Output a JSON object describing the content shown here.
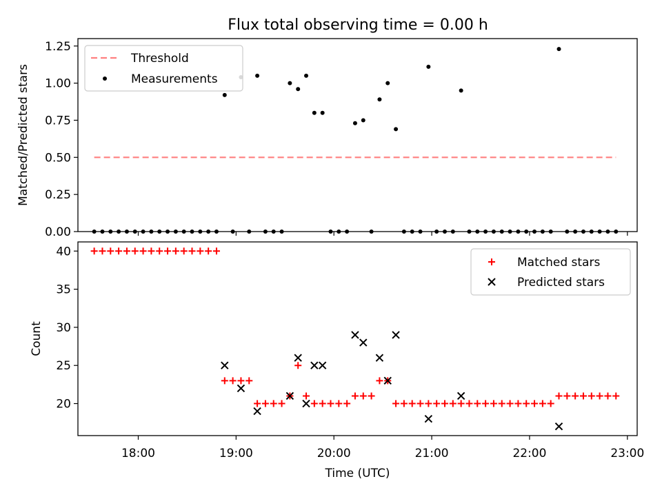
{
  "figure": {
    "title": "Flux total observing time = 0.00 h"
  },
  "chart_data": [
    {
      "type": "scatter",
      "name": "ratio-panel",
      "title": "Flux total observing time = 0.00 h",
      "xlabel": "",
      "ylabel": "Matched/Predicted stars",
      "xlim": [
        "17:23",
        "23:06"
      ],
      "ylim": [
        0,
        1.3
      ],
      "yticks": [
        "0.00",
        "0.25",
        "0.50",
        "0.75",
        "1.00",
        "1.25"
      ],
      "grid": false,
      "legend_position": "upper-left",
      "threshold": {
        "name": "Threshold",
        "value": 0.5,
        "x_start": "17:33",
        "x_end": "22:53",
        "color": "#ff7f7f",
        "style": "dashed"
      },
      "series": [
        {
          "name": "Measurements",
          "color": "#000000",
          "marker": "dot",
          "points": [
            [
              "17:33",
              0
            ],
            [
              "17:38",
              0
            ],
            [
              "17:43",
              0
            ],
            [
              "17:48",
              0
            ],
            [
              "17:53",
              0
            ],
            [
              "17:58",
              0
            ],
            [
              "18:03",
              0
            ],
            [
              "18:08",
              0
            ],
            [
              "18:13",
              0
            ],
            [
              "18:18",
              0
            ],
            [
              "18:23",
              0
            ],
            [
              "18:28",
              0
            ],
            [
              "18:33",
              0
            ],
            [
              "18:38",
              0
            ],
            [
              "18:43",
              0
            ],
            [
              "18:48",
              0
            ],
            [
              "18:53",
              0.92
            ],
            [
              "18:58",
              0
            ],
            [
              "19:03",
              1.04
            ],
            [
              "19:08",
              0
            ],
            [
              "19:13",
              1.05
            ],
            [
              "19:18",
              0
            ],
            [
              "19:23",
              0
            ],
            [
              "19:28",
              0
            ],
            [
              "19:33",
              1.0
            ],
            [
              "19:38",
              0.96
            ],
            [
              "19:43",
              1.05
            ],
            [
              "19:48",
              0.8
            ],
            [
              "19:53",
              0.8
            ],
            [
              "19:58",
              0
            ],
            [
              "20:03",
              0
            ],
            [
              "20:08",
              0
            ],
            [
              "20:13",
              0.73
            ],
            [
              "20:18",
              0.75
            ],
            [
              "20:23",
              0
            ],
            [
              "20:28",
              0.89
            ],
            [
              "20:33",
              1.0
            ],
            [
              "20:38",
              0.69
            ],
            [
              "20:43",
              0
            ],
            [
              "20:48",
              0
            ],
            [
              "20:53",
              0
            ],
            [
              "20:58",
              1.11
            ],
            [
              "21:03",
              0
            ],
            [
              "21:08",
              0
            ],
            [
              "21:13",
              0
            ],
            [
              "21:18",
              0.95
            ],
            [
              "21:23",
              0
            ],
            [
              "21:28",
              0
            ],
            [
              "21:33",
              0
            ],
            [
              "21:38",
              0
            ],
            [
              "21:43",
              0
            ],
            [
              "21:48",
              0
            ],
            [
              "21:53",
              0
            ],
            [
              "21:58",
              0
            ],
            [
              "22:03",
              0
            ],
            [
              "22:08",
              0
            ],
            [
              "22:13",
              0
            ],
            [
              "22:18",
              1.23
            ],
            [
              "22:23",
              0
            ],
            [
              "22:28",
              0
            ],
            [
              "22:33",
              0
            ],
            [
              "22:38",
              0
            ],
            [
              "22:43",
              0
            ],
            [
              "22:48",
              0
            ],
            [
              "22:53",
              0
            ]
          ]
        }
      ]
    },
    {
      "type": "scatter",
      "name": "count-panel",
      "xlabel": "Time (UTC)",
      "ylabel": "Count",
      "xlim": [
        "17:23",
        "23:06"
      ],
      "ylim": [
        15.8,
        41.2
      ],
      "yticks": [
        "20",
        "25",
        "30",
        "35",
        "40"
      ],
      "xticks": [
        "18:00",
        "19:00",
        "20:00",
        "21:00",
        "22:00",
        "23:00"
      ],
      "grid": false,
      "legend_position": "upper-right",
      "series": [
        {
          "name": "Matched stars",
          "color": "#ff0000",
          "marker": "plus",
          "points": [
            [
              "17:33",
              40
            ],
            [
              "17:38",
              40
            ],
            [
              "17:43",
              40
            ],
            [
              "17:48",
              40
            ],
            [
              "17:53",
              40
            ],
            [
              "17:58",
              40
            ],
            [
              "18:03",
              40
            ],
            [
              "18:08",
              40
            ],
            [
              "18:13",
              40
            ],
            [
              "18:18",
              40
            ],
            [
              "18:23",
              40
            ],
            [
              "18:28",
              40
            ],
            [
              "18:33",
              40
            ],
            [
              "18:38",
              40
            ],
            [
              "18:43",
              40
            ],
            [
              "18:48",
              40
            ],
            [
              "18:53",
              23
            ],
            [
              "18:58",
              23
            ],
            [
              "19:03",
              23
            ],
            [
              "19:08",
              23
            ],
            [
              "19:13",
              20
            ],
            [
              "19:18",
              20
            ],
            [
              "19:23",
              20
            ],
            [
              "19:28",
              20
            ],
            [
              "19:33",
              21
            ],
            [
              "19:38",
              25
            ],
            [
              "19:43",
              21
            ],
            [
              "19:48",
              20
            ],
            [
              "19:53",
              20
            ],
            [
              "19:58",
              20
            ],
            [
              "20:03",
              20
            ],
            [
              "20:08",
              20
            ],
            [
              "20:13",
              21
            ],
            [
              "20:18",
              21
            ],
            [
              "20:23",
              21
            ],
            [
              "20:28",
              23
            ],
            [
              "20:33",
              23
            ],
            [
              "20:38",
              20
            ],
            [
              "20:43",
              20
            ],
            [
              "20:48",
              20
            ],
            [
              "20:53",
              20
            ],
            [
              "20:58",
              20
            ],
            [
              "21:03",
              20
            ],
            [
              "21:08",
              20
            ],
            [
              "21:13",
              20
            ],
            [
              "21:18",
              20
            ],
            [
              "21:23",
              20
            ],
            [
              "21:28",
              20
            ],
            [
              "21:33",
              20
            ],
            [
              "21:38",
              20
            ],
            [
              "21:43",
              20
            ],
            [
              "21:48",
              20
            ],
            [
              "21:53",
              20
            ],
            [
              "21:58",
              20
            ],
            [
              "22:03",
              20
            ],
            [
              "22:08",
              20
            ],
            [
              "22:13",
              20
            ],
            [
              "22:18",
              21
            ],
            [
              "22:23",
              21
            ],
            [
              "22:28",
              21
            ],
            [
              "22:33",
              21
            ],
            [
              "22:38",
              21
            ],
            [
              "22:43",
              21
            ],
            [
              "22:48",
              21
            ],
            [
              "22:53",
              21
            ]
          ]
        },
        {
          "name": "Predicted stars",
          "color": "#000000",
          "marker": "x",
          "points": [
            [
              "18:53",
              25
            ],
            [
              "19:03",
              22
            ],
            [
              "19:13",
              19
            ],
            [
              "19:33",
              21
            ],
            [
              "19:38",
              26
            ],
            [
              "19:43",
              20
            ],
            [
              "19:48",
              25
            ],
            [
              "19:53",
              25
            ],
            [
              "20:13",
              29
            ],
            [
              "20:18",
              28
            ],
            [
              "20:28",
              26
            ],
            [
              "20:33",
              23
            ],
            [
              "20:38",
              29
            ],
            [
              "20:58",
              18
            ],
            [
              "21:18",
              21
            ],
            [
              "22:18",
              17
            ]
          ]
        }
      ]
    }
  ]
}
